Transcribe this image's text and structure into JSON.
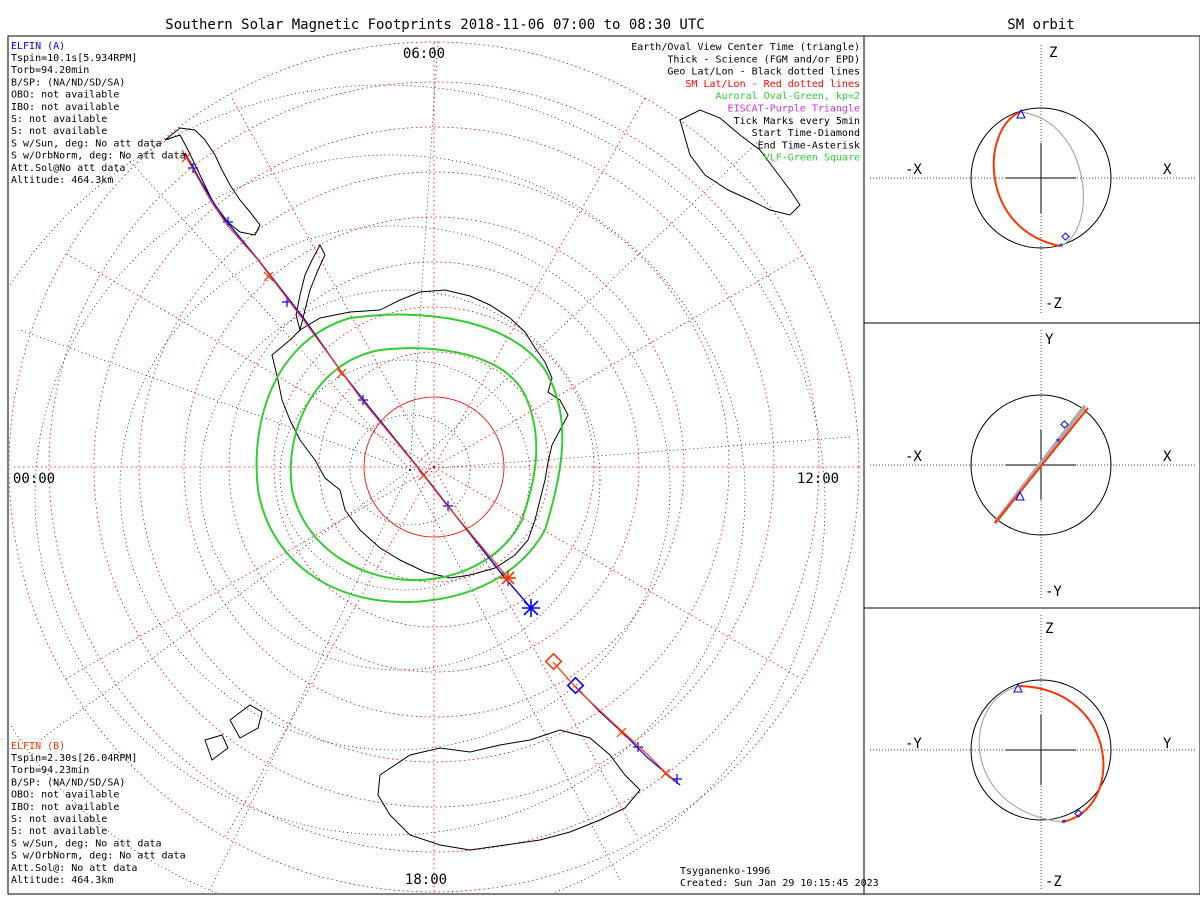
{
  "main": {
    "title": "Southern Solar Magnetic Footprints 2018-11-06 07:00 to 08:30 UTC",
    "mlt_labels": {
      "top": "06:00",
      "left": "00:00",
      "right": "12:00",
      "bottom": "18:00"
    }
  },
  "sat_a": {
    "name": "ELFIN (A)",
    "color": "#0000ff",
    "lines": [
      "Tspin=10.1s[5.934RPM]",
      "Torb=94.20min",
      "B/SP: (NA/ND/SD/SA)",
      "OBO: not available",
      "IBO: not available",
      "S: not available",
      "S: not available",
      "S w/Sun, deg: No att data",
      "S w/OrbNorm, deg: No att data",
      "Att.Sol@No att data",
      "Altitude: 464.3km"
    ]
  },
  "sat_b": {
    "name": "ELFIN (B)",
    "color": "#ff3300",
    "lines": [
      "Tspin=2.30s[26.04RPM]",
      "Torb=94.23min",
      "B/SP: (NA/ND/SD/SA)",
      "OBO: not available",
      "IBO: not available",
      "S: not available",
      "S: not available",
      "S w/Sun, deg: No att data",
      "S w/OrbNorm, deg: No att data",
      "Att.Sol@: No att data",
      "Altitude: 464.3km"
    ]
  },
  "legend": [
    {
      "text": "Earth/Oval View Center Time (triangle)",
      "color": "#000000"
    },
    {
      "text": "Thick - Science (FGM and/or EPD)",
      "color": "#000000"
    },
    {
      "text": "Geo Lat/Lon - Black dotted lines",
      "color": "#000000"
    },
    {
      "text": "SM Lat/Lon - Red dotted lines",
      "color": "#ff0000"
    },
    {
      "text": "Auroral Oval-Green, kp=2",
      "color": "#33cc33"
    },
    {
      "text": "EISCAT-Purple Triangle",
      "color": "#cc33cc"
    },
    {
      "text": "Tick Marks every 5min",
      "color": "#000000"
    },
    {
      "text": "Start Time-Diamond",
      "color": "#000000"
    },
    {
      "text": "End Time-Asterisk",
      "color": "#000000"
    },
    {
      "text": "VLF-Green Square",
      "color": "#33cc33"
    }
  ],
  "footer": {
    "model": "Tsyganenko-1996",
    "created": "Created: Sun Jan 29 10:15:45 2023"
  },
  "orbit": {
    "title": "SM orbit",
    "panel1": {
      "top": "Z",
      "bottom": "-Z",
      "left": "-X",
      "right": "X"
    },
    "panel2": {
      "top": "Y",
      "bottom": "-Y",
      "left": "-X",
      "right": "X"
    },
    "panel3": {
      "top": "Z",
      "bottom": "-Z",
      "left": "-Y",
      "right": "Y"
    }
  },
  "colors": {
    "sat_a": "#0000ff",
    "sat_b": "#ff3300",
    "oval": "#33cc33",
    "grid_sm": "#ff0000",
    "grid_geo": "#000000",
    "orbit_gray": "#aaaaaa"
  }
}
